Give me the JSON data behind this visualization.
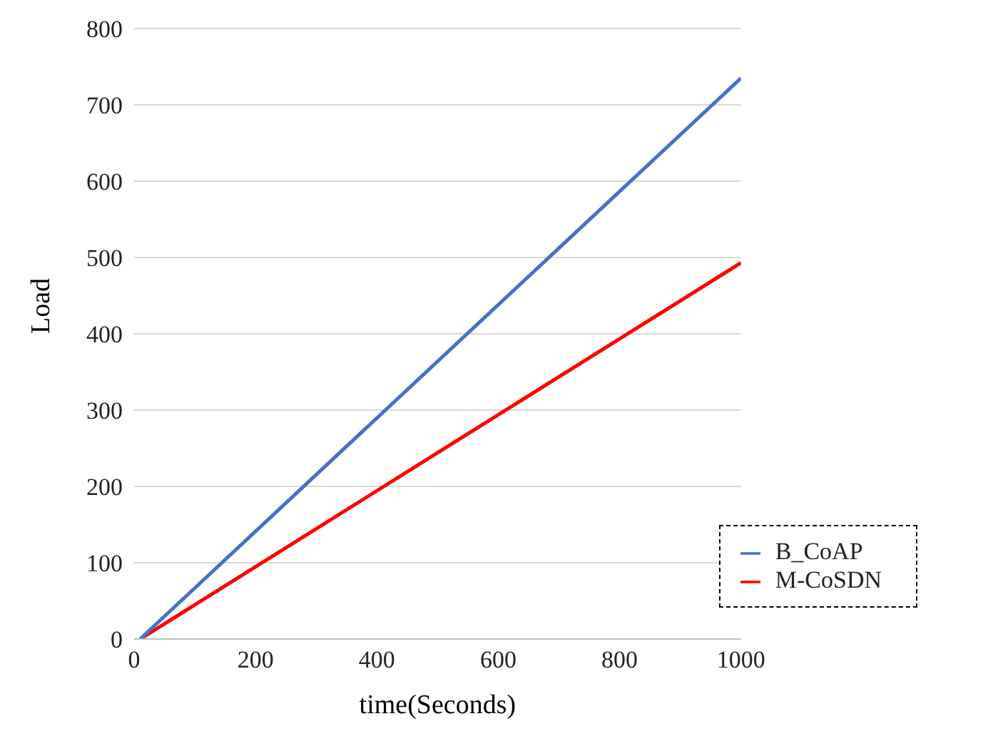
{
  "chart_data": {
    "type": "line",
    "xlabel": "time(Seconds)",
    "ylabel": "Load",
    "x": [
      10,
      1000
    ],
    "xlim": [
      0,
      1000
    ],
    "xticks": [
      0,
      200,
      400,
      600,
      800,
      1000
    ],
    "ylim": [
      0,
      800
    ],
    "yticks": [
      0,
      100,
      200,
      300,
      400,
      500,
      600,
      700,
      800
    ],
    "grid": "y",
    "legend": "bottom right",
    "marker": "none",
    "line_style": "solid",
    "series": [
      {
        "name": "M-CoSDN",
        "color": "#ff0000",
        "values": [
          0,
          493
        ]
      },
      {
        "name": "B_CoAP",
        "color": "#4472c4",
        "values": [
          0,
          735
        ]
      }
    ]
  }
}
